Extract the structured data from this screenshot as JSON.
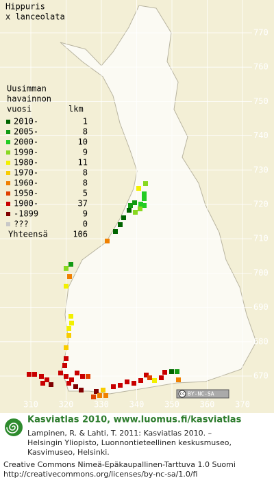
{
  "title": [
    "Hippuris",
    "x lanceolata"
  ],
  "legend": {
    "header": [
      "Uusimman",
      "havainnon",
      "vuosi"
    ],
    "count_header": "lkm",
    "rows": [
      {
        "label": "2010-",
        "count": 1,
        "color": "#006400"
      },
      {
        "label": "2005-",
        "count": 8,
        "color": "#129a12"
      },
      {
        "label": "2000-",
        "count": 10,
        "color": "#22cc22"
      },
      {
        "label": "1990-",
        "count": 9,
        "color": "#88d820"
      },
      {
        "label": "1980-",
        "count": 11,
        "color": "#f2f000"
      },
      {
        "label": "1970-",
        "count": 8,
        "color": "#f8cc00"
      },
      {
        "label": "1960-",
        "count": 8,
        "color": "#f08000"
      },
      {
        "label": "1950-",
        "count": 5,
        "color": "#e04000"
      },
      {
        "label": "1900-",
        "count": 37,
        "color": "#c80000"
      },
      {
        "label": "-1899",
        "count": 9,
        "color": "#800000"
      },
      {
        "label": "???",
        "count": 0,
        "color": "#c8c8c8"
      }
    ],
    "total_label": "Yhteensä",
    "total": 106
  },
  "grid": {
    "x_labels": [
      310,
      320,
      330,
      340,
      350,
      360,
      370
    ],
    "y_labels": [
      770,
      760,
      750,
      740,
      730,
      720,
      710,
      700,
      690,
      680,
      670
    ]
  },
  "license_badge": {
    "symbol": "cc",
    "text": "BY-NC-SA"
  },
  "footer": {
    "heading": "Kasviatlas 2010, www.luomus.fi/kasviatlas",
    "citation": [
      "Lampinen, R. & Lahti, T. 2011: Kasviatlas 2010. –",
      "Helsingin Yliopisto, Luonnontieteellinen keskusmuseo,",
      "Kasvimuseo, Helsinki."
    ],
    "license": [
      "Creative Commons Nimeä-Epäkaupallinen-Tarttuva 1.0 Suomi",
      "http://creativecommons.org/licenses/by-nc-sa/1.0/fi"
    ]
  }
}
